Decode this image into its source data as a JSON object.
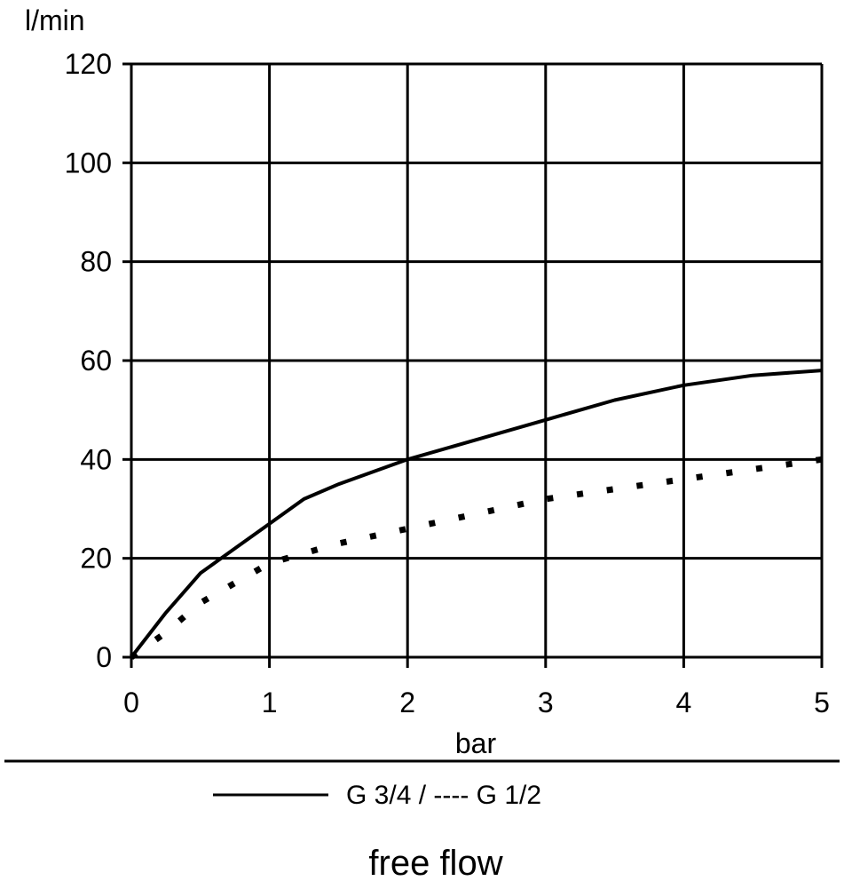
{
  "chart_data": {
    "type": "line",
    "title": "",
    "caption": "free flow",
    "xlabel": "bar",
    "ylabel": "l/min",
    "xlim": [
      0,
      5
    ],
    "ylim": [
      0,
      120
    ],
    "xticks": [
      0,
      1,
      2,
      3,
      4,
      5
    ],
    "yticks": [
      0,
      20,
      40,
      60,
      80,
      100,
      120
    ],
    "xtick_labels": [
      "0",
      "1",
      "2",
      "3",
      "4",
      "5"
    ],
    "ytick_labels": [
      "0",
      "20",
      "40",
      "60",
      "80",
      "100",
      "120"
    ],
    "grid": true,
    "legend_position": "bottom",
    "legend_text": "G 3/4 / ---- G 1/2",
    "colors": {
      "line": "#000000",
      "background": "#ffffff"
    },
    "series": [
      {
        "name": "G 3/4",
        "style": "solid",
        "x": [
          0,
          0.25,
          0.5,
          0.75,
          1.0,
          1.25,
          1.5,
          2.0,
          2.5,
          3.0,
          3.5,
          4.0,
          4.5,
          5.0
        ],
        "y": [
          0,
          9,
          17,
          22,
          27,
          32,
          35,
          40,
          44,
          48,
          52,
          55,
          57,
          58
        ]
      },
      {
        "name": "G 1/2",
        "style": "dashed",
        "x": [
          0,
          0.25,
          0.5,
          0.75,
          1.0,
          1.5,
          2.0,
          2.5,
          3.0,
          3.5,
          4.0,
          4.5,
          5.0
        ],
        "y": [
          0,
          5,
          11,
          15,
          19,
          23,
          26,
          29,
          32,
          34,
          36,
          38,
          40
        ]
      }
    ]
  }
}
